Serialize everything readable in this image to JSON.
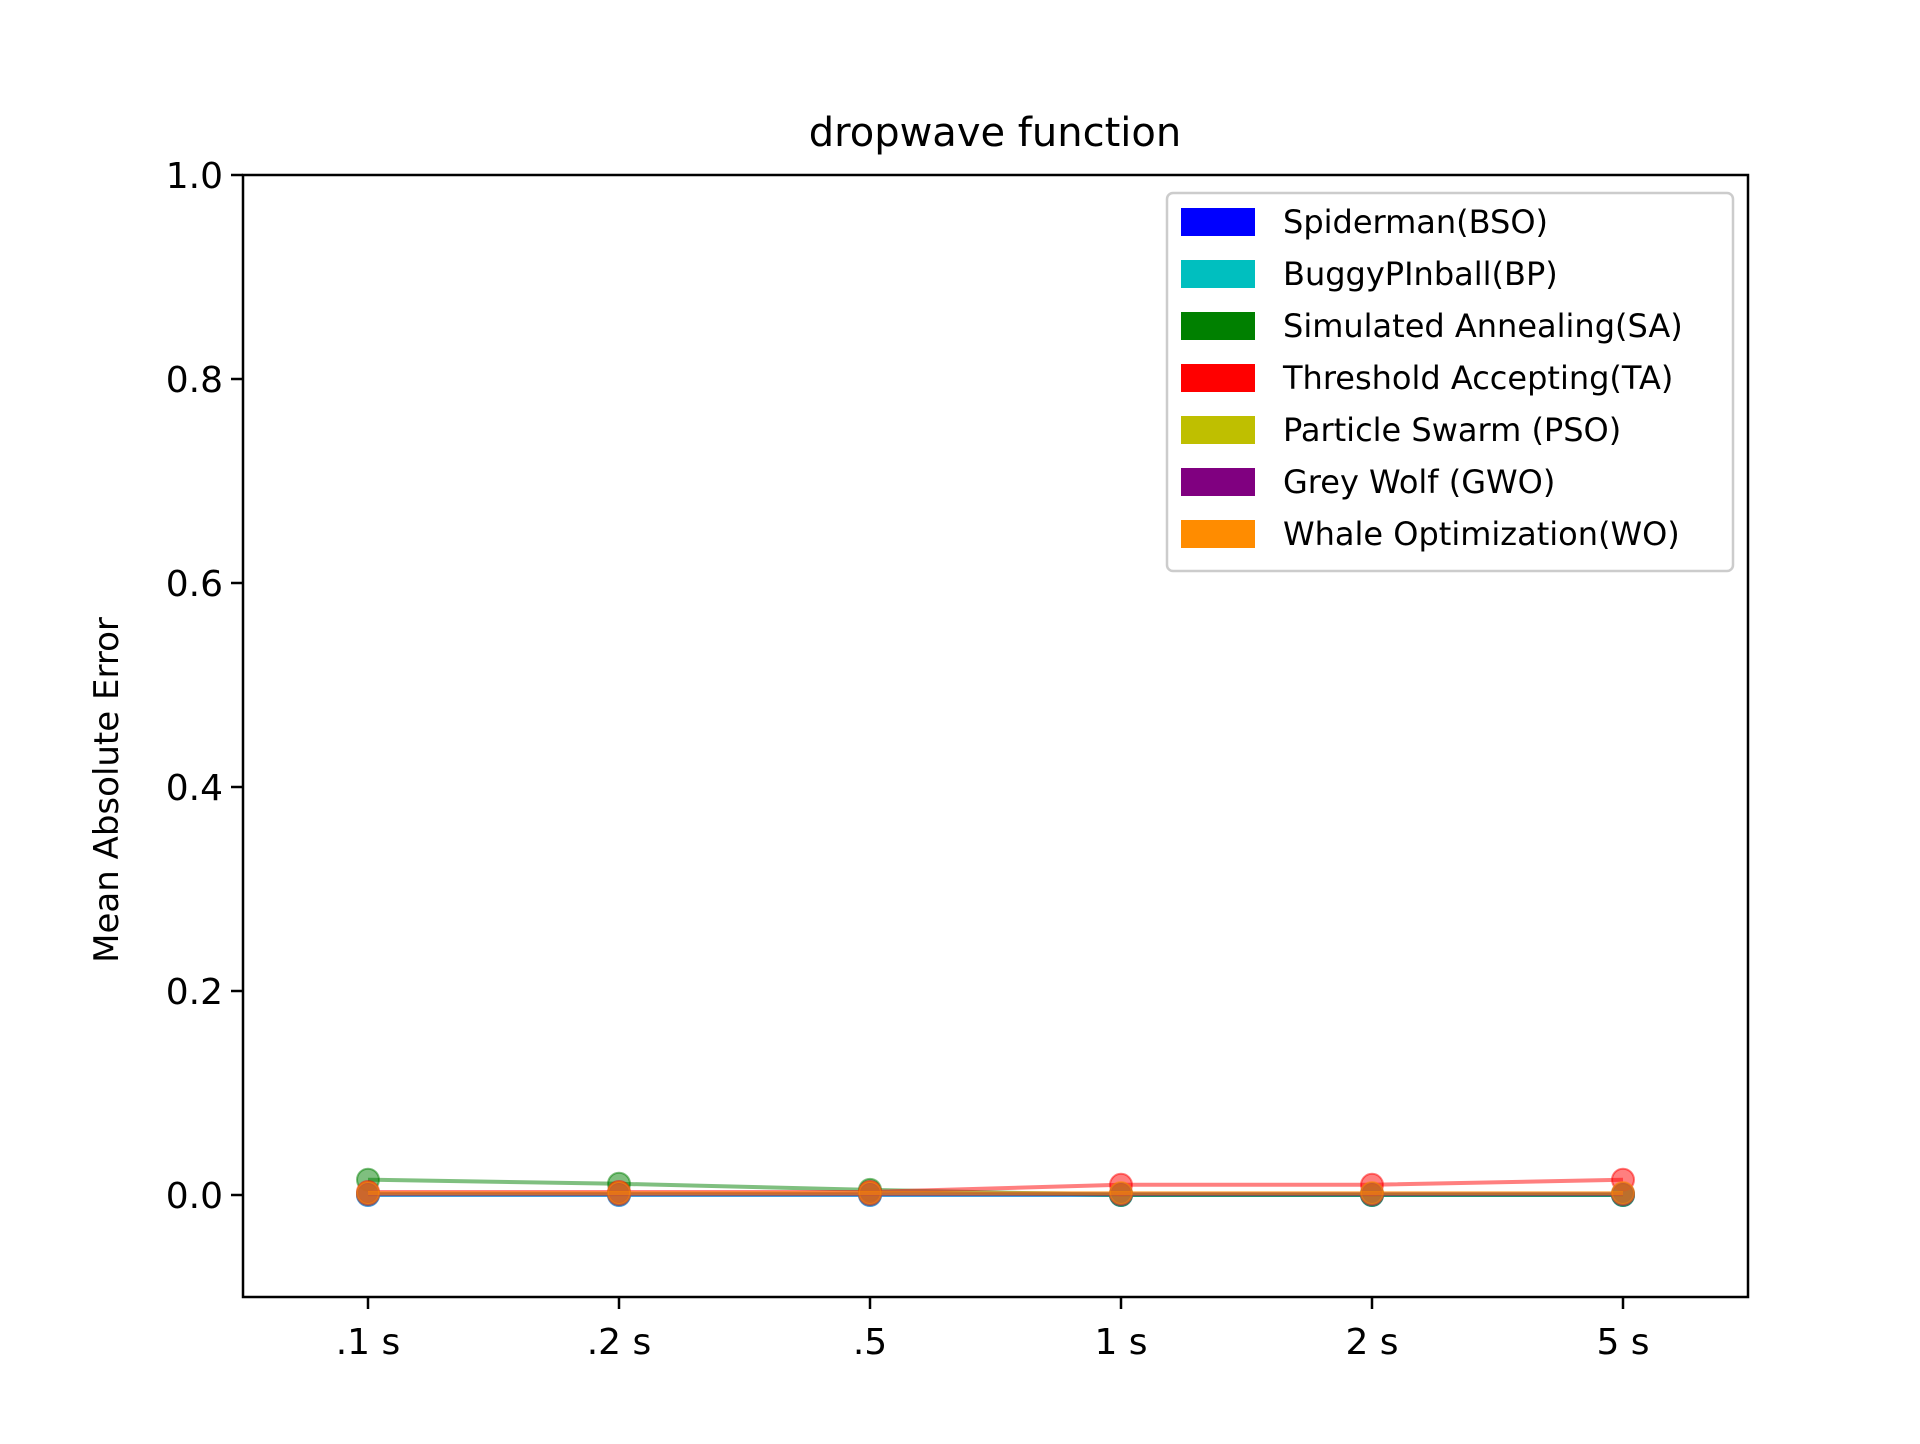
{
  "chart_data": {
    "type": "line",
    "title": "dropwave function",
    "xlabel": "",
    "ylabel": "Mean Absolute Error",
    "categories": [
      ".1 s",
      ".2 s",
      ".5",
      "1 s",
      "2 s",
      "5 s"
    ],
    "ylim": [
      -0.1,
      1.0
    ],
    "yticks": [
      "0.0",
      "0.2",
      "0.4",
      "0.6",
      "0.8",
      "1.0"
    ],
    "grid": false,
    "legend_position": "top-right",
    "series": [
      {
        "name": "Spiderman(BSO)",
        "color": "#0000ff",
        "values": [
          0.0,
          0.0,
          0.0,
          0.0,
          0.0,
          0.0
        ]
      },
      {
        "name": "BuggyPInball(BP)",
        "color": "#00bfbf",
        "values": [
          0.0,
          0.0,
          0.0,
          0.0,
          0.0,
          0.0
        ]
      },
      {
        "name": "Simulated Annealing(SA)",
        "color": "#008000",
        "values": [
          0.015,
          0.011,
          0.005,
          0.0,
          0.0,
          0.0
        ]
      },
      {
        "name": "Threshold Accepting(TA)",
        "color": "#ff0000",
        "values": [
          0.003,
          0.003,
          0.003,
          0.01,
          0.01,
          0.015
        ]
      },
      {
        "name": "Particle Swarm (PSO)",
        "color": "#bfbf00",
        "values": [
          0.001,
          0.001,
          0.001,
          0.001,
          0.001,
          0.001
        ]
      },
      {
        "name": "Grey Wolf (GWO)",
        "color": "#800080",
        "values": [
          0.001,
          0.001,
          0.001,
          0.001,
          0.001,
          0.001
        ]
      },
      {
        "name": "Whale Optimization(WO)",
        "color": "#ff8c00",
        "values": [
          0.002,
          0.002,
          0.002,
          0.002,
          0.002,
          0.002
        ]
      }
    ]
  }
}
